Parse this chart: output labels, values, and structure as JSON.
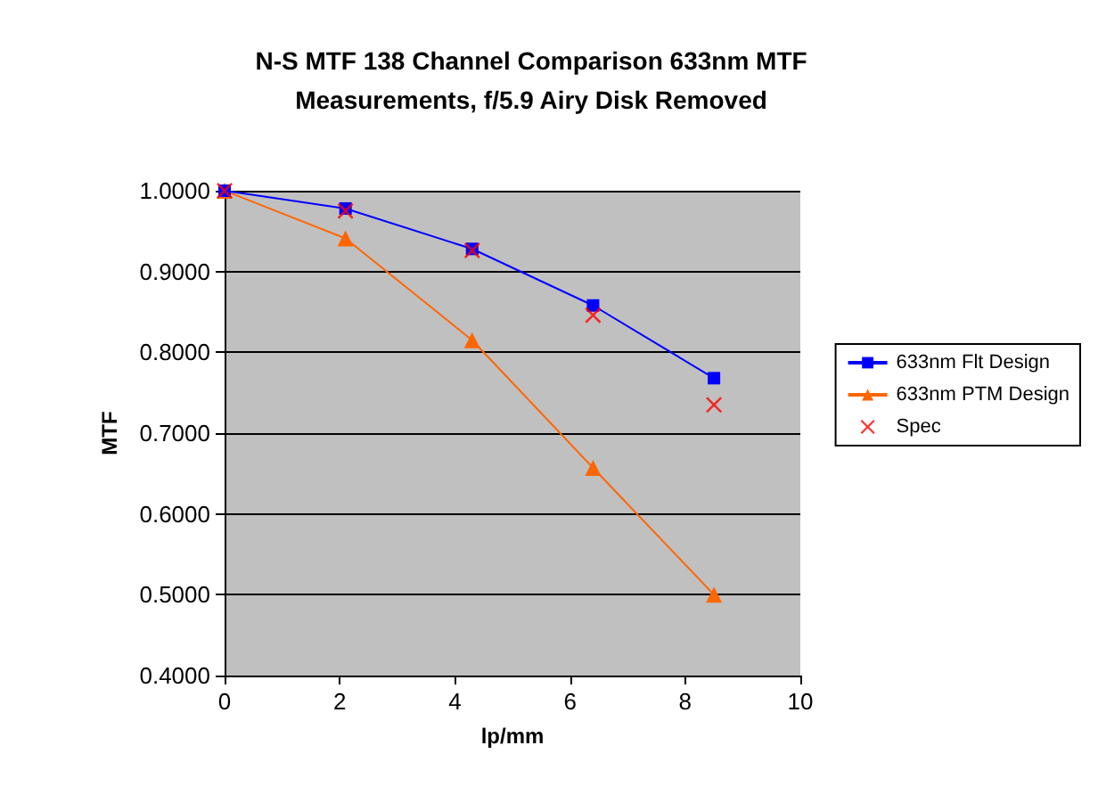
{
  "chart_data": {
    "type": "line",
    "title": "N-S MTF 138 Channel Comparison 633nm MTF\nMeasurements, f/5.9 Airy Disk Removed",
    "xlabel": "lp/mm",
    "ylabel": "MTF",
    "x": [
      0,
      2.1,
      4.3,
      6.4,
      8.5
    ],
    "series": [
      {
        "name": "633nm Flt Design",
        "color": "#0000ff",
        "marker": "square",
        "values": [
          1.0,
          0.978,
          0.928,
          0.858,
          0.768
        ]
      },
      {
        "name": "633nm PTM Design",
        "color": "#ff6600",
        "marker": "triangle",
        "values": [
          1.0,
          0.941,
          0.815,
          0.657,
          0.5
        ]
      },
      {
        "name": "Spec",
        "color": "#ff0000",
        "type": "scatter",
        "marker": "cross",
        "values": [
          1.0,
          0.975,
          0.926,
          0.846,
          0.735
        ]
      }
    ],
    "xlim": [
      0,
      10
    ],
    "xticks": [
      0,
      2,
      4,
      6,
      8,
      10
    ],
    "ylim": [
      0.4,
      1.0
    ],
    "yticks": [
      {
        "value": 0.4,
        "label": "0.4000"
      },
      {
        "value": 0.5,
        "label": "0.5000"
      },
      {
        "value": 0.6,
        "label": "0.6000"
      },
      {
        "value": 0.7,
        "label": "0.7000"
      },
      {
        "value": 0.8,
        "label": "0.8000"
      },
      {
        "value": 0.9,
        "label": "0.9000"
      },
      {
        "value": 1.0,
        "label": "1.0000"
      }
    ],
    "grid": "y",
    "legend": "right"
  }
}
